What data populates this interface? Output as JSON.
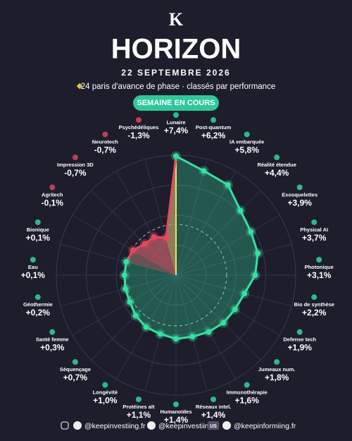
{
  "header": {
    "logo": "K",
    "title": "HORIZON",
    "date": "22 SEPTEMBRE 2026",
    "subtitle": "24 paris d'avance de phase · classés par performance",
    "badge": "SEMAINE EN COURS"
  },
  "chart_data": {
    "type": "radial",
    "categories": [
      "Lunaire",
      "Post-quantum",
      "IA embarquée",
      "Réalité étendue",
      "Exosquelettes",
      "Physical AI",
      "Photonique",
      "Bio de synthèse",
      "Defense tech",
      "Jumeaux num.",
      "Immunothérapie",
      "Réseaux intel.",
      "Humanoïdes",
      "Protéines alt",
      "Longévité",
      "Séquençage",
      "Santé femme",
      "Géothermie",
      "Eau",
      "Bionique",
      "Agritech",
      "Impression 3D",
      "Neurotech",
      "Psychédéliques"
    ],
    "values": [
      7.4,
      6.2,
      5.8,
      4.4,
      3.9,
      3.7,
      3.1,
      2.2,
      1.9,
      1.8,
      1.6,
      1.4,
      1.4,
      1.1,
      1.0,
      0.7,
      0.3,
      0.2,
      0.1,
      0.1,
      -0.1,
      -0.7,
      -0.7,
      -1.3
    ],
    "value_labels": [
      "+7,4%",
      "+6,2%",
      "+5,8%",
      "+4,4%",
      "+3,9%",
      "+3,7%",
      "+3,1%",
      "+2,2%",
      "+1,9%",
      "+1,8%",
      "+1,6%",
      "+1,4%",
      "+1,4%",
      "+1,1%",
      "+1,0%",
      "+0,7%",
      "+0,3%",
      "+0,2%",
      "+0,1%",
      "+0,1%",
      "-0,1%",
      "-0,7%",
      "-0,7%",
      "-1,3%"
    ],
    "rlim": [
      -5.5,
      7.5
    ],
    "grid": true,
    "positive_color": "#35e0a1",
    "negative_color": "#e8465c",
    "highlight_color": "#e8e36a"
  },
  "footer": {
    "instagram": "@keepinvestiing.fr",
    "handle2": "@keepinvestiing",
    "country": "US",
    "handle3": "@keepinformiing.fr"
  }
}
